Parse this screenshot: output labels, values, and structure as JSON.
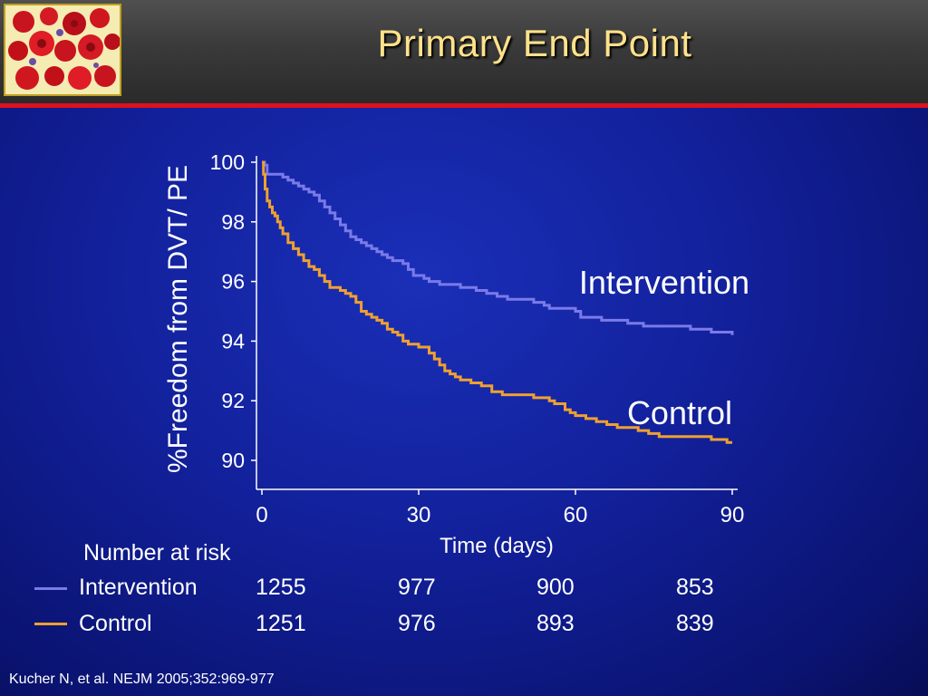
{
  "slide": {
    "title": "Primary End Point",
    "citation": "Kucher N, et al. NEJM 2005;352:969-977",
    "title_color": "#ffe28a",
    "rule_color": "#e0101e",
    "logo_icon": "blood-cells-image"
  },
  "chart_data": {
    "type": "line",
    "xlabel": "Time (days)",
    "ylabel": "%Freedom from DVT/ PE",
    "xlim": [
      0,
      90
    ],
    "ylim": [
      89,
      100.2
    ],
    "xticks": [
      0,
      30,
      60,
      90
    ],
    "yticks": [
      90,
      92,
      94,
      96,
      98,
      100
    ],
    "xtick_labels": [
      "0",
      "30",
      "60",
      "90"
    ],
    "ytick_labels": [
      "90",
      "92",
      "94",
      "96",
      "98",
      "100"
    ],
    "grid": false,
    "series": [
      {
        "name": "Intervention",
        "color": "#7a7ae8",
        "x": [
          0,
          0.5,
          1,
          2,
          4,
          5,
          6,
          7,
          8,
          9,
          10,
          11,
          12,
          13,
          14,
          15,
          16,
          17,
          18,
          19,
          20,
          21,
          22,
          23,
          24,
          25,
          26,
          27,
          28,
          29,
          30,
          31,
          32,
          33,
          34,
          36,
          38,
          40,
          41,
          43,
          45,
          47,
          48,
          50,
          52,
          54,
          55,
          58,
          60,
          61,
          63,
          65,
          67,
          70,
          73,
          76,
          78,
          80,
          82,
          84,
          86,
          88,
          90
        ],
        "y": [
          100,
          99.9,
          99.6,
          99.6,
          99.5,
          99.4,
          99.3,
          99.2,
          99.1,
          99.0,
          98.9,
          98.7,
          98.5,
          98.3,
          98.1,
          97.9,
          97.7,
          97.5,
          97.4,
          97.3,
          97.2,
          97.1,
          97.0,
          96.9,
          96.8,
          96.7,
          96.7,
          96.6,
          96.4,
          96.2,
          96.2,
          96.1,
          96.0,
          96.0,
          95.9,
          95.9,
          95.8,
          95.8,
          95.7,
          95.6,
          95.5,
          95.4,
          95.4,
          95.4,
          95.3,
          95.2,
          95.1,
          95.1,
          95.0,
          94.8,
          94.8,
          94.7,
          94.7,
          94.6,
          94.5,
          94.5,
          94.5,
          94.5,
          94.4,
          94.4,
          94.3,
          94.3,
          94.2
        ]
      },
      {
        "name": "Control",
        "color": "#f0a030",
        "x": [
          0,
          0.3,
          0.6,
          1,
          1.5,
          2,
          2.5,
          3,
          3.5,
          4,
          5,
          6,
          7,
          8,
          9,
          10,
          11,
          12,
          13,
          14,
          15,
          16,
          17,
          18,
          19,
          20,
          21,
          22,
          23,
          24,
          25,
          26,
          27,
          28,
          30,
          32,
          33,
          34,
          35,
          36,
          37,
          38,
          40,
          42,
          44,
          46,
          48,
          50,
          52,
          55,
          56,
          58,
          59,
          60,
          62,
          64,
          66,
          68,
          70,
          72,
          74,
          76,
          78,
          80,
          82,
          84,
          86,
          88,
          89,
          90
        ],
        "y": [
          100,
          99.6,
          99.1,
          98.7,
          98.5,
          98.3,
          98.2,
          98.0,
          97.8,
          97.6,
          97.3,
          97.1,
          96.9,
          96.7,
          96.5,
          96.4,
          96.2,
          96.0,
          95.8,
          95.8,
          95.7,
          95.6,
          95.5,
          95.3,
          95.0,
          94.9,
          94.8,
          94.7,
          94.6,
          94.4,
          94.3,
          94.2,
          94.0,
          93.9,
          93.8,
          93.6,
          93.4,
          93.2,
          93.0,
          92.9,
          92.8,
          92.7,
          92.6,
          92.5,
          92.3,
          92.2,
          92.2,
          92.2,
          92.1,
          92.0,
          91.9,
          91.7,
          91.6,
          91.5,
          91.4,
          91.3,
          91.2,
          91.1,
          91.1,
          91.0,
          90.9,
          90.8,
          90.8,
          90.8,
          90.8,
          90.8,
          90.7,
          90.7,
          90.6,
          90.6
        ]
      }
    ],
    "annotations": [
      "Intervention",
      "Control"
    ]
  },
  "risk_table": {
    "title": "Number at risk",
    "rows": [
      {
        "label": "Intervention",
        "color": "#7a7ae8",
        "values": [
          "1255",
          "977",
          "900",
          "853"
        ]
      },
      {
        "label": "Control",
        "color": "#f0a030",
        "values": [
          "1251",
          "976",
          "893",
          "839"
        ]
      }
    ]
  }
}
